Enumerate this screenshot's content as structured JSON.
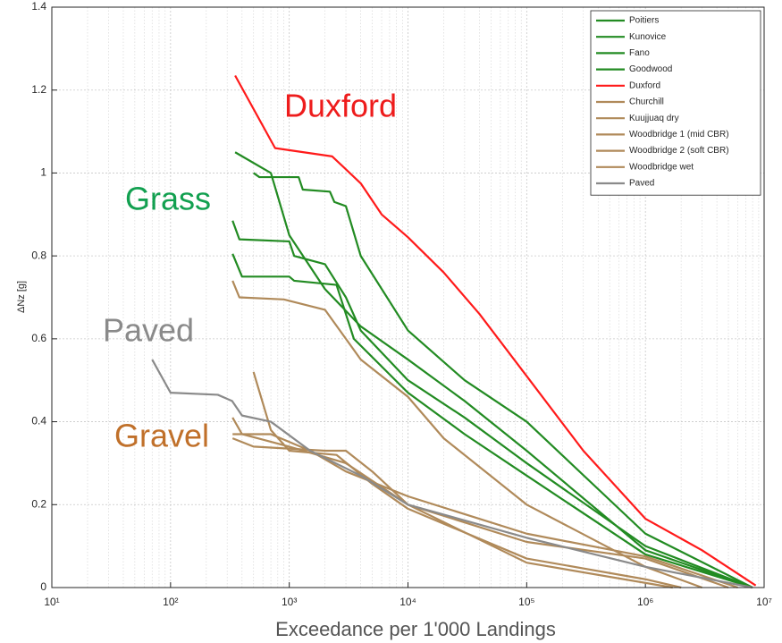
{
  "chart_data": {
    "type": "line",
    "xlabel": "Exceedance per 1'000 Landings",
    "ylabel": "ΔNz [g]",
    "xscale": "log",
    "xlim": [
      10,
      10000000
    ],
    "ylim": [
      0,
      1.4
    ],
    "xticks": [
      {
        "value": 10,
        "label": "10¹"
      },
      {
        "value": 100,
        "label": "10²"
      },
      {
        "value": 1000,
        "label": "10³"
      },
      {
        "value": 10000,
        "label": "10⁴"
      },
      {
        "value": 100000,
        "label": "10⁵"
      },
      {
        "value": 1000000,
        "label": "10⁶"
      },
      {
        "value": 10000000,
        "label": "10⁷"
      }
    ],
    "yticks": [
      0,
      0.2,
      0.4,
      0.6,
      0.8,
      1,
      1.2,
      1.4
    ],
    "grid": true,
    "minor_grid": true,
    "legend": "upper right",
    "annotations": [
      {
        "text": "Duxford",
        "color": "#ee1c1c"
      },
      {
        "text": "Grass",
        "color": "#12a050"
      },
      {
        "text": "Paved",
        "color": "#8a8a8a"
      },
      {
        "text": "Gravel",
        "color": "#c0702a"
      }
    ],
    "series": [
      {
        "name": "Poitiers",
        "color": "#228b22",
        "x": [
          350,
          700,
          1000,
          2000,
          4000,
          10000,
          30000,
          100000,
          1000000,
          8000000
        ],
        "values": [
          1.05,
          1.0,
          0.85,
          0.72,
          0.63,
          0.55,
          0.45,
          0.33,
          0.09,
          0.0
        ]
      },
      {
        "name": "Kunovice",
        "color": "#228b22",
        "x": [
          500,
          560,
          1200,
          1300,
          2200,
          2400,
          3000,
          4000,
          10000,
          30000,
          100000,
          1000000,
          8000000
        ],
        "values": [
          1.0,
          0.99,
          0.99,
          0.96,
          0.955,
          0.93,
          0.92,
          0.8,
          0.62,
          0.5,
          0.4,
          0.13,
          0.0
        ]
      },
      {
        "name": "Fano",
        "color": "#228b22",
        "x": [
          333,
          380,
          1000,
          1100,
          2000,
          3000,
          4000,
          10000,
          30000,
          100000,
          1000000,
          8000000
        ],
        "values": [
          0.885,
          0.84,
          0.835,
          0.8,
          0.78,
          0.7,
          0.62,
          0.5,
          0.41,
          0.3,
          0.1,
          0.0
        ]
      },
      {
        "name": "Goodwood",
        "color": "#228b22",
        "x": [
          333,
          400,
          1000,
          1100,
          2500,
          3500,
          10000,
          30000,
          100000,
          1000000,
          8000000
        ],
        "values": [
          0.805,
          0.75,
          0.75,
          0.74,
          0.73,
          0.6,
          0.47,
          0.37,
          0.27,
          0.08,
          0.0
        ]
      },
      {
        "name": "Duxford",
        "color": "#ff1a1a",
        "x": [
          350,
          760,
          2300,
          4000,
          6000,
          10000,
          20000,
          40000,
          100000,
          300000,
          1000000,
          3000000,
          8500000
        ],
        "values": [
          1.235,
          1.06,
          1.04,
          0.975,
          0.9,
          0.845,
          0.76,
          0.66,
          0.51,
          0.33,
          0.166,
          0.09,
          0.005
        ]
      },
      {
        "name": "Churchill",
        "color": "#b08a5a",
        "x": [
          333,
          380,
          900,
          2000,
          3000,
          4000,
          10000,
          20000,
          100000,
          1000000,
          3000000
        ],
        "values": [
          0.74,
          0.7,
          0.695,
          0.67,
          0.6,
          0.55,
          0.46,
          0.36,
          0.2,
          0.05,
          0.0
        ]
      },
      {
        "name": "Kuujjuaq dry",
        "color": "#b08a5a",
        "x": [
          333,
          400,
          1000,
          3000,
          10000,
          100000,
          1000000,
          5000000
        ],
        "values": [
          0.41,
          0.37,
          0.34,
          0.3,
          0.2,
          0.11,
          0.07,
          0.0
        ]
      },
      {
        "name": "Woodbridge 1 (mid CBR)",
        "color": "#b08a5a",
        "x": [
          333,
          700,
          1500,
          3000,
          10000,
          100000,
          1000000,
          6000000
        ],
        "values": [
          0.37,
          0.37,
          0.33,
          0.28,
          0.22,
          0.13,
          0.075,
          0.0
        ]
      },
      {
        "name": "Woodbridge 2 (soft CBR)",
        "color": "#b08a5a",
        "x": [
          500,
          700,
          1000,
          2500,
          5000,
          10000,
          100000,
          1000000,
          2000000
        ],
        "values": [
          0.52,
          0.38,
          0.33,
          0.32,
          0.25,
          0.19,
          0.07,
          0.02,
          0.0
        ]
      },
      {
        "name": "Woodbridge wet",
        "color": "#b08a5a",
        "x": [
          333,
          500,
          2000,
          3000,
          5000,
          10000,
          100000,
          1700000
        ],
        "values": [
          0.36,
          0.34,
          0.33,
          0.33,
          0.28,
          0.2,
          0.06,
          0.0
        ]
      },
      {
        "name": "Paved",
        "color": "#8a8a8a",
        "x": [
          70,
          100,
          250,
          330,
          400,
          700,
          1500,
          4000,
          10000,
          100000,
          1000000,
          8000000
        ],
        "values": [
          0.55,
          0.47,
          0.465,
          0.45,
          0.415,
          0.4,
          0.33,
          0.27,
          0.2,
          0.12,
          0.05,
          0.0
        ]
      }
    ]
  }
}
